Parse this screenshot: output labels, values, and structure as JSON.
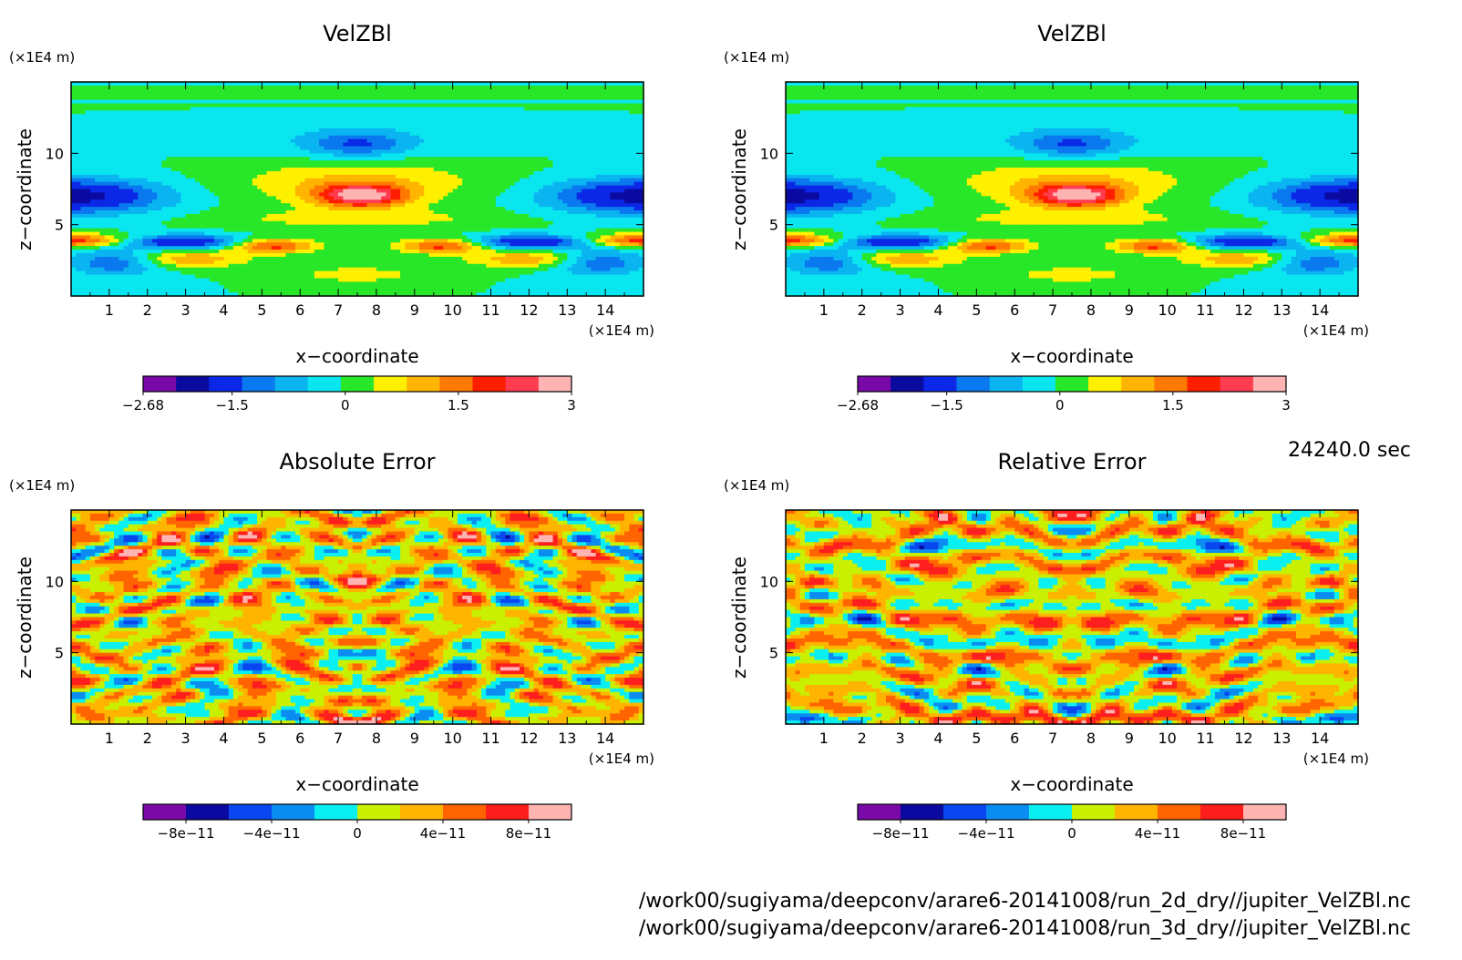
{
  "time_label": "24240.0 sec",
  "file_paths": [
    "/work00/sugiyama/deepconv/arare6-20141008/run_2d_dry//jupiter_VelZBl.nc",
    "/work00/sugiyama/deepconv/arare6-20141008/run_3d_dry//jupiter_VelZBl.nc"
  ],
  "velzbl_levels": {
    "colors": [
      "#7a0aa8",
      "#0a0aa0",
      "#0a28e6",
      "#0a78ee",
      "#0ab4f0",
      "#0ae6f0",
      "#28e628",
      "#fff000",
      "#ffb400",
      "#ff7800",
      "#ff1e00",
      "#ff3c50",
      "#ffb4b4"
    ],
    "bounds": [
      -2.68,
      -2.25,
      -1.5,
      -1.0,
      -0.5,
      0,
      0.5,
      1.0,
      1.5,
      2.0,
      2.5,
      3.0
    ]
  },
  "error_levels": {
    "colors": [
      "#7a0aa8",
      "#0a0aa0",
      "#0a46f0",
      "#0a8cf0",
      "#0af0f0",
      "#c8f000",
      "#ffb400",
      "#ff6400",
      "#ff1e1e",
      "#ffb4b4"
    ],
    "bounds": [
      -1e-10,
      -8e-11,
      -6e-11,
      -4e-11,
      -2e-11,
      0,
      2e-11,
      4e-11,
      6e-11,
      8e-11,
      1e-10
    ]
  },
  "chart_data": [
    {
      "type": "heatmap",
      "title": "VelZBl",
      "xlabel": "x−coordinate",
      "ylabel": "z−coordinate",
      "x_unit": "(×1E4 m)",
      "y_unit": "(×1E4 m)",
      "xlim": [
        0,
        15
      ],
      "ylim": [
        0,
        15
      ],
      "x_ticks": [
        "1",
        "2",
        "3",
        "4",
        "5",
        "6",
        "7",
        "8",
        "9",
        "10",
        "11",
        "12",
        "13",
        "14"
      ],
      "y_ticks": [
        "5",
        "10"
      ],
      "colorbar_labels": [
        "−2.68",
        "−1.5",
        "0",
        "1.5",
        "3"
      ],
      "value_range": [
        -2.68,
        3
      ],
      "field": "velz"
    },
    {
      "type": "heatmap",
      "title": "VelZBl",
      "xlabel": "x−coordinate",
      "ylabel": "z−coordinate",
      "x_unit": "(×1E4 m)",
      "y_unit": "(×1E4 m)",
      "xlim": [
        0,
        15
      ],
      "ylim": [
        0,
        15
      ],
      "x_ticks": [
        "1",
        "2",
        "3",
        "4",
        "5",
        "6",
        "7",
        "8",
        "9",
        "10",
        "11",
        "12",
        "13",
        "14"
      ],
      "y_ticks": [
        "5",
        "10"
      ],
      "colorbar_labels": [
        "−2.68",
        "−1.5",
        "0",
        "1.5",
        "3"
      ],
      "value_range": [
        -2.68,
        3
      ],
      "field": "velz"
    },
    {
      "type": "heatmap",
      "title": "Absolute Error",
      "xlabel": "x−coordinate",
      "ylabel": "z−coordinate",
      "x_unit": "(×1E4 m)",
      "y_unit": "(×1E4 m)",
      "xlim": [
        0,
        15
      ],
      "ylim": [
        0,
        15
      ],
      "x_ticks": [
        "1",
        "2",
        "3",
        "4",
        "5",
        "6",
        "7",
        "8",
        "9",
        "10",
        "11",
        "12",
        "13",
        "14"
      ],
      "y_ticks": [
        "5",
        "10"
      ],
      "colorbar_labels": [
        "−8e−11",
        "−4e−11",
        "0",
        "4e−11",
        "8e−11"
      ],
      "value_range": [
        -1e-10,
        1e-10
      ],
      "field": "error",
      "seed": 3
    },
    {
      "type": "heatmap",
      "title": "Relative Error",
      "xlabel": "x−coordinate",
      "ylabel": "z−coordinate",
      "x_unit": "(×1E4 m)",
      "y_unit": "(×1E4 m)",
      "xlim": [
        0,
        15
      ],
      "ylim": [
        0,
        15
      ],
      "x_ticks": [
        "1",
        "2",
        "3",
        "4",
        "5",
        "6",
        "7",
        "8",
        "9",
        "10",
        "11",
        "12",
        "13",
        "14"
      ],
      "y_ticks": [
        "5",
        "10"
      ],
      "colorbar_labels": [
        "−8e−11",
        "−4e−11",
        "0",
        "4e−11",
        "8e−11"
      ],
      "value_range": [
        -1e-10,
        1e-10
      ],
      "field": "error",
      "seed": 11
    }
  ]
}
